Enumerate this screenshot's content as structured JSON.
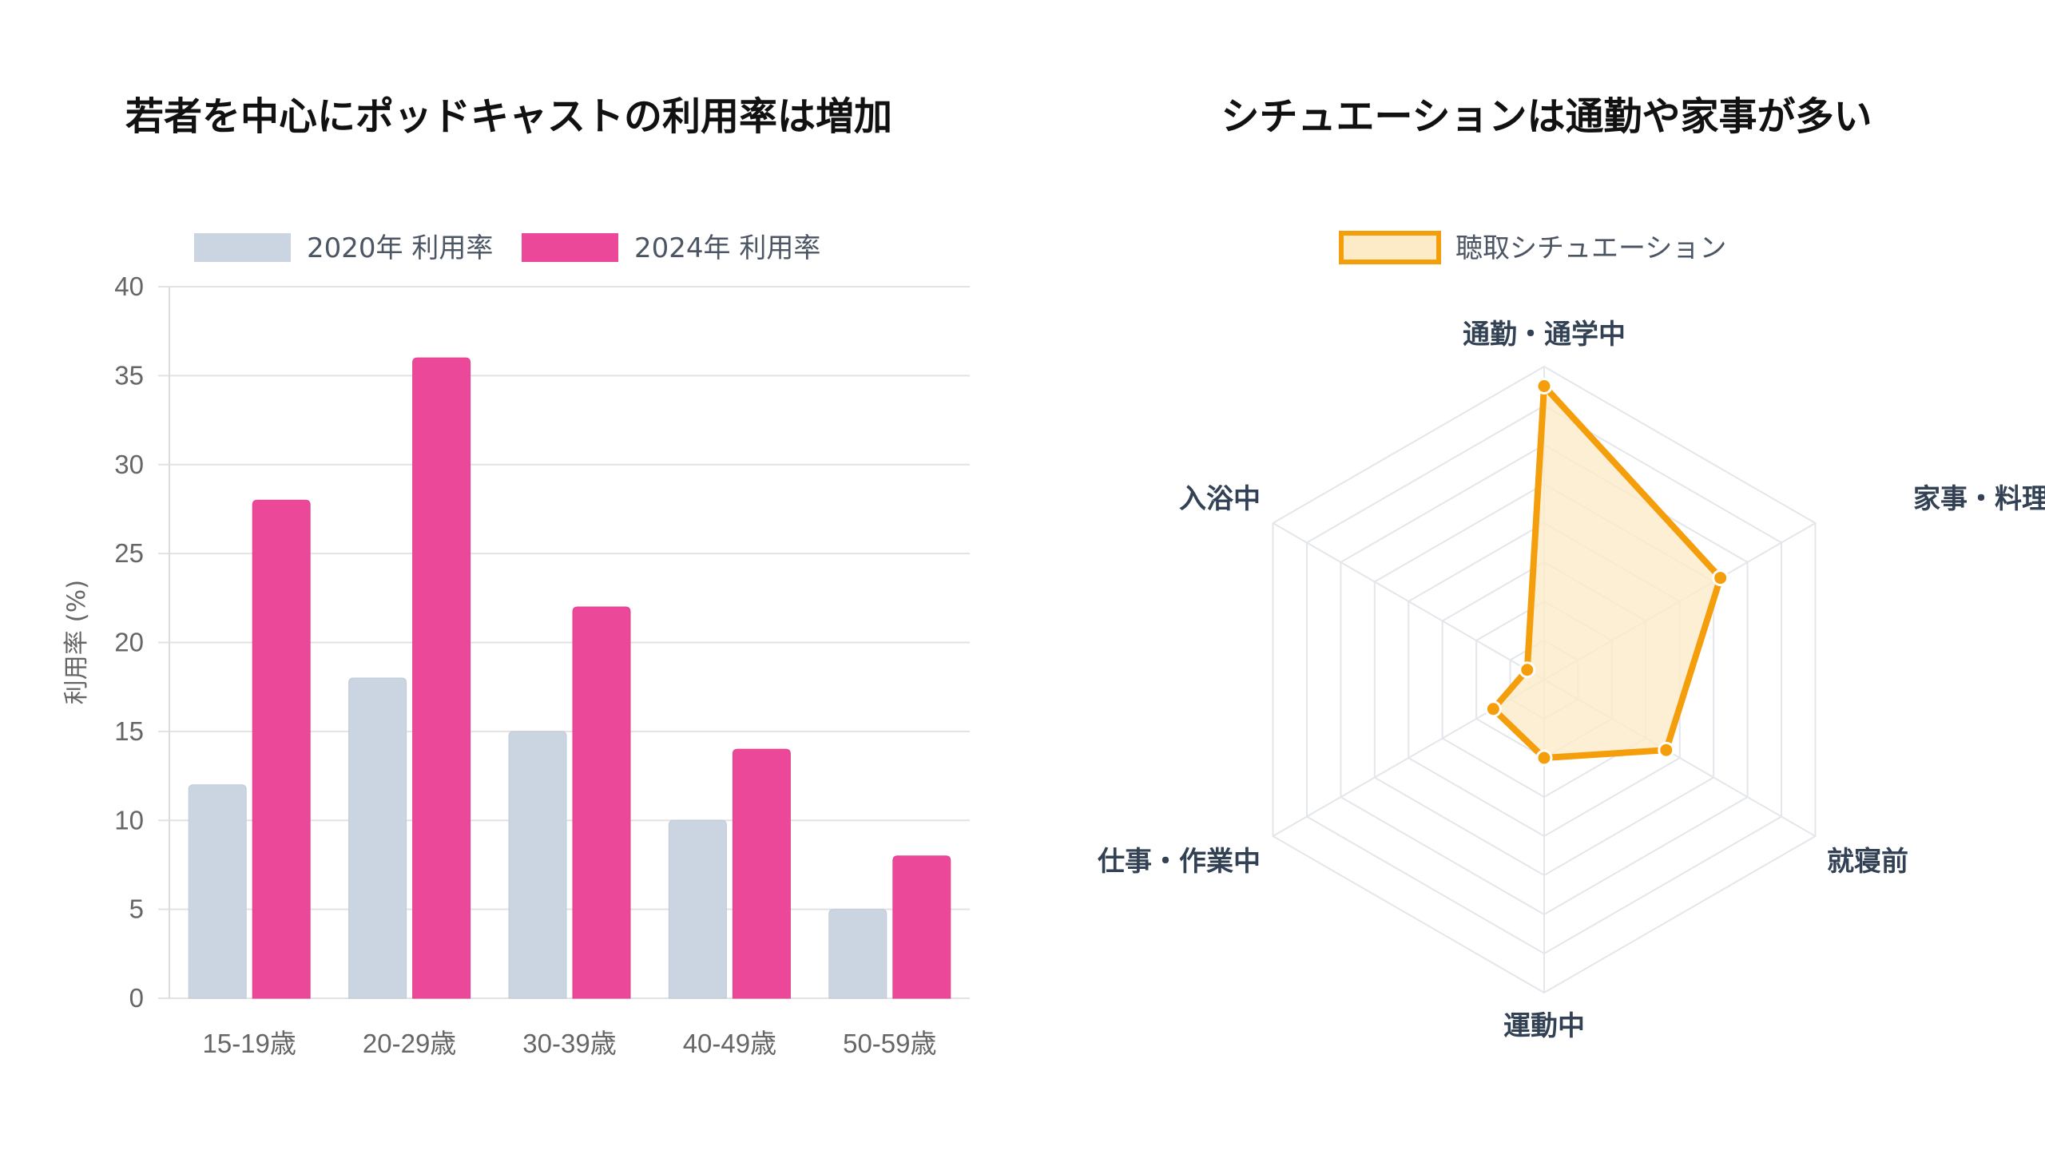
{
  "chart_data": [
    {
      "type": "bar",
      "title": "若者を中心にポッドキャストの利用率は増加",
      "categories": [
        "15-19歳",
        "20-29歳",
        "30-39歳",
        "40-49歳",
        "50-59歳"
      ],
      "series": [
        {
          "name": "2020年 利用率",
          "values": [
            12,
            18,
            15,
            10,
            5
          ],
          "color": "#cbd5e1"
        },
        {
          "name": "2024年 利用率",
          "values": [
            28,
            36,
            22,
            14,
            8
          ],
          "color": "#ec4899"
        }
      ],
      "xlabel": "",
      "ylabel": "利用率 (%)",
      "ylim": [
        0,
        40
      ],
      "yticks": [
        "0",
        "5",
        "10",
        "15",
        "20",
        "25",
        "30",
        "35",
        "40"
      ],
      "grid": true,
      "legend": "top"
    },
    {
      "type": "radar",
      "title": "シチュエーションは通勤や家事が多い",
      "categories": [
        "通勤・通学中",
        "家事・料理中",
        "就寝前",
        "運動中",
        "仕事・作業中",
        "入浴中"
      ],
      "series": [
        {
          "name": "聴取シチュエーション",
          "values": [
            75,
            52,
            36,
            20,
            15,
            5
          ],
          "color": "#f59e0b",
          "fill": "#fdebc8"
        }
      ],
      "rlim": [
        0,
        80
      ],
      "rings": 8,
      "legend": "top"
    }
  ]
}
